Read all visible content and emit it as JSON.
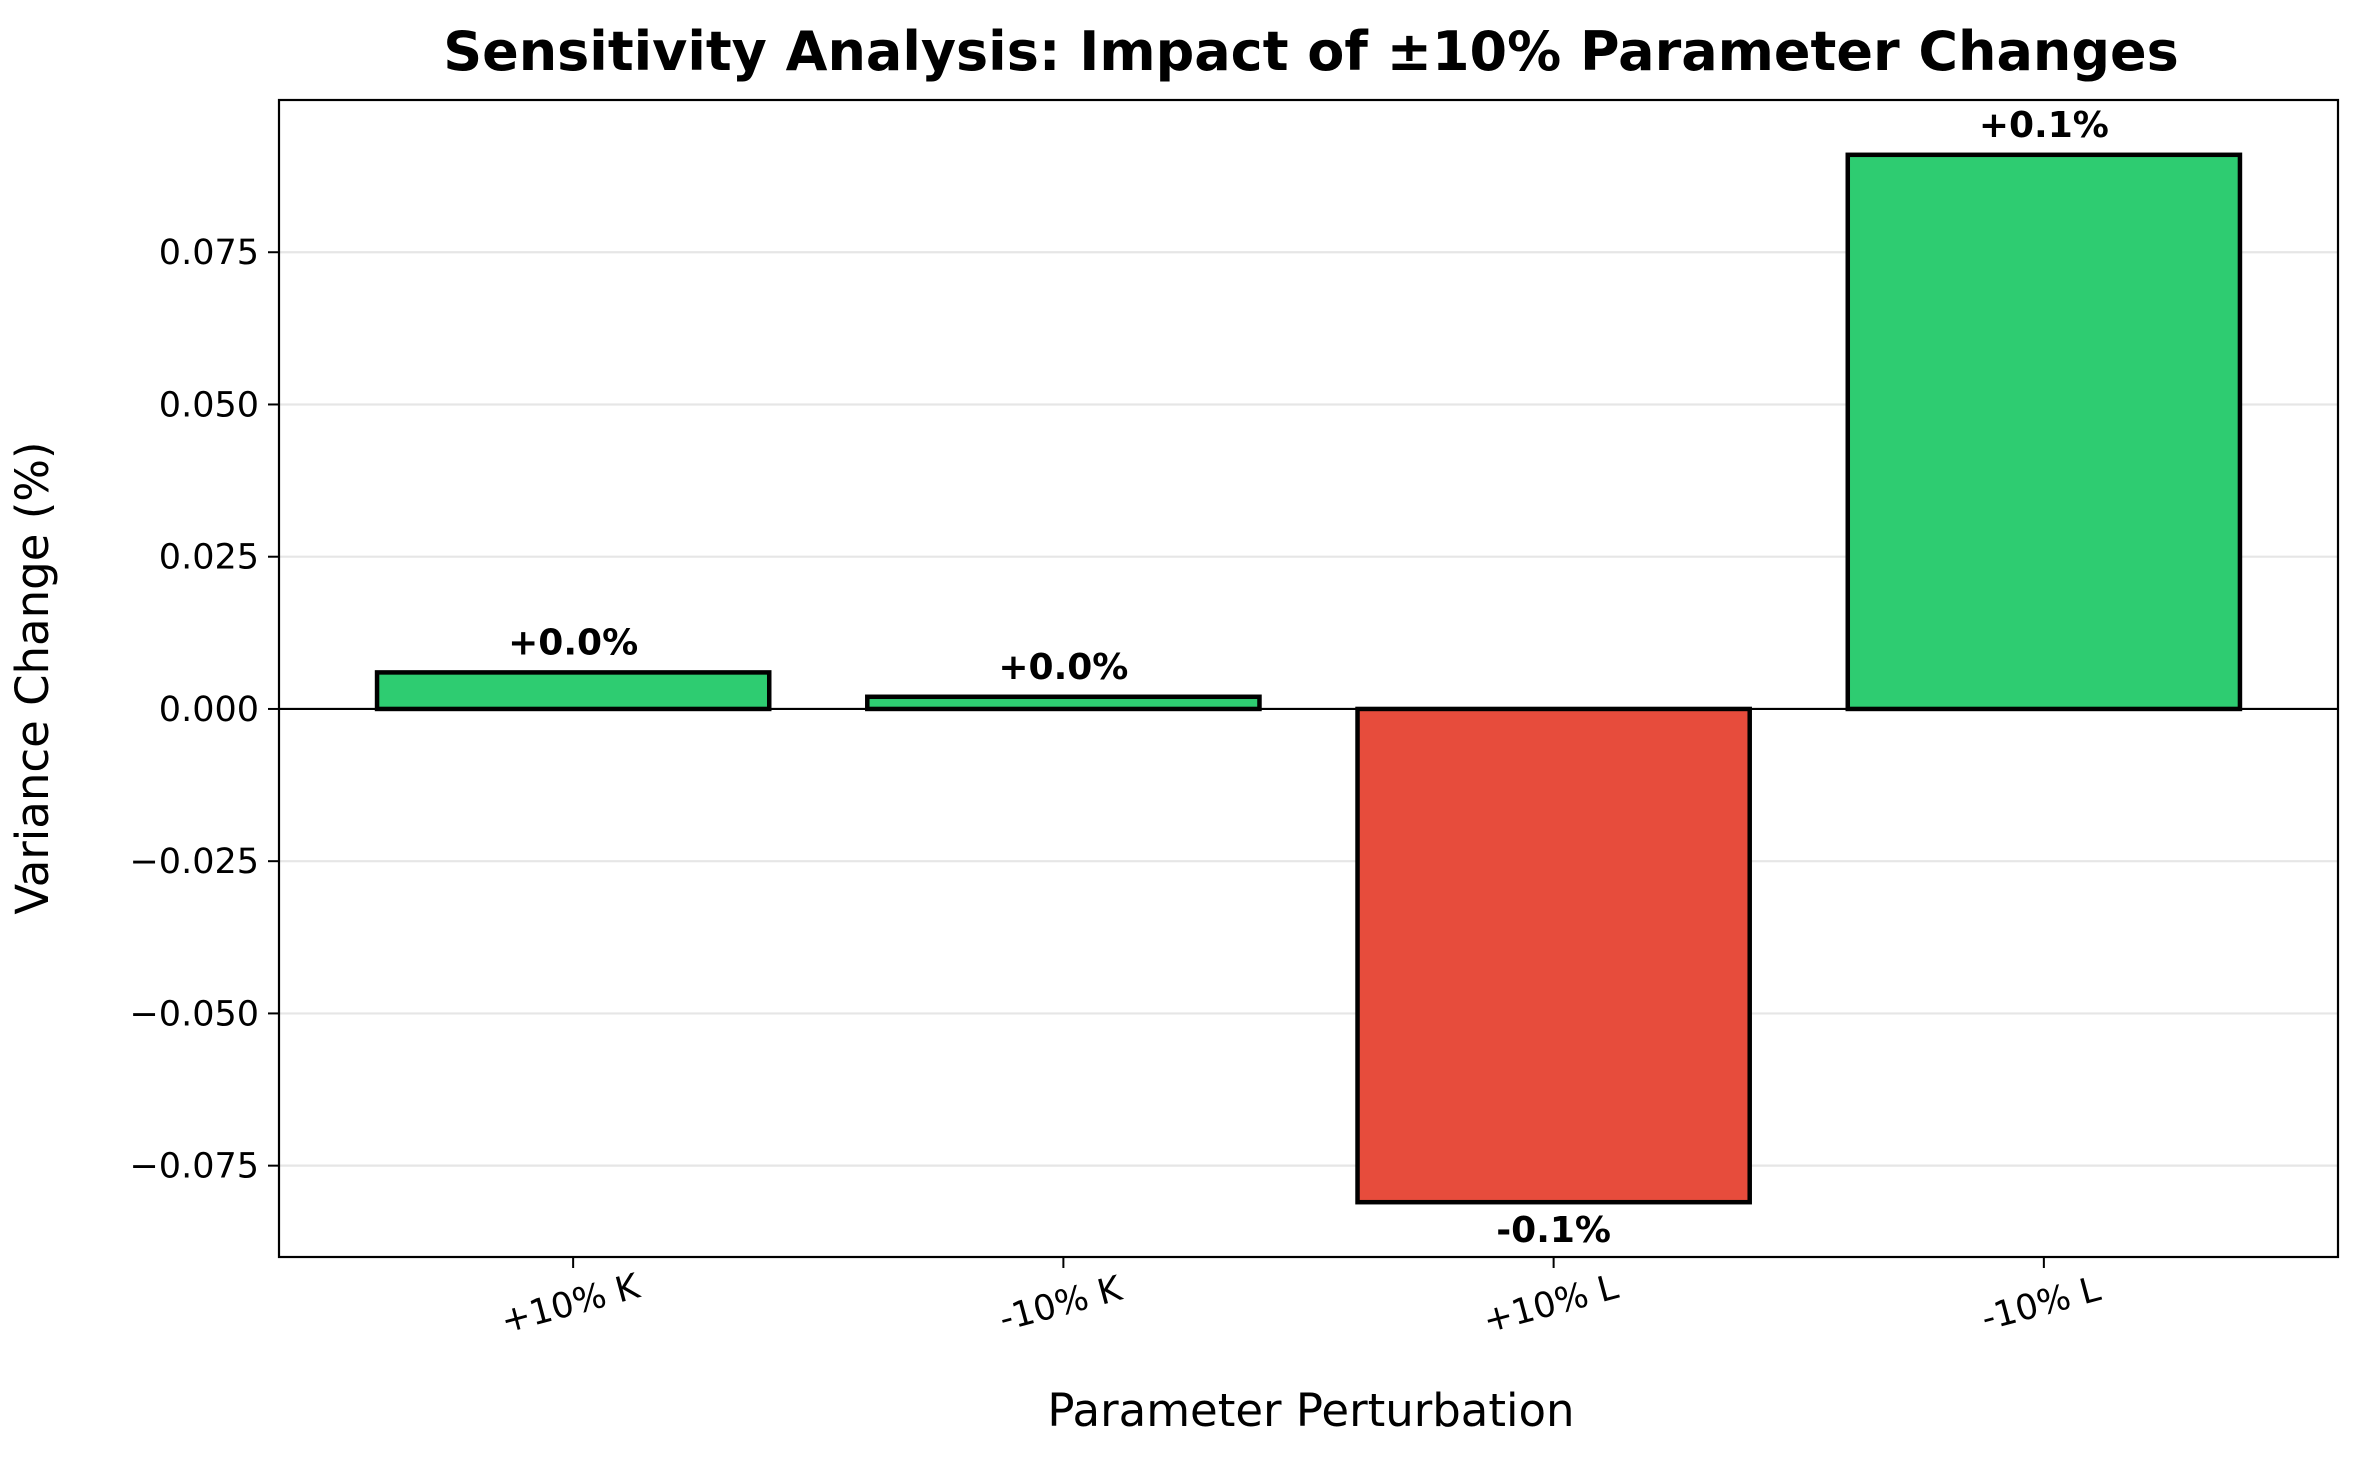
{
  "chart_data": {
    "type": "bar",
    "title": "Sensitivity Analysis: Impact of ±10% Parameter Changes",
    "xlabel": "Parameter Perturbation",
    "ylabel": "Variance Change (%)",
    "categories": [
      "+10% K",
      "-10% K",
      "+10% L",
      "-10% L"
    ],
    "values": [
      0.006,
      0.002,
      -0.081,
      0.091
    ],
    "data_labels": [
      "+0.0%",
      "+0.0%",
      "-0.1%",
      "+0.1%"
    ],
    "ylim": [
      -0.09,
      0.1
    ],
    "yticks": [
      -0.075,
      -0.05,
      -0.025,
      0.0,
      0.025,
      0.05,
      0.075
    ],
    "ytick_labels": [
      "−0.075",
      "−0.050",
      "−0.025",
      "0.000",
      "0.025",
      "0.050",
      "0.075"
    ],
    "grid": "horizontal",
    "colors": {
      "positive": "#2ecc71",
      "negative": "#e74c3c",
      "edge": "#000000",
      "grid": "#e6e6e6"
    }
  }
}
